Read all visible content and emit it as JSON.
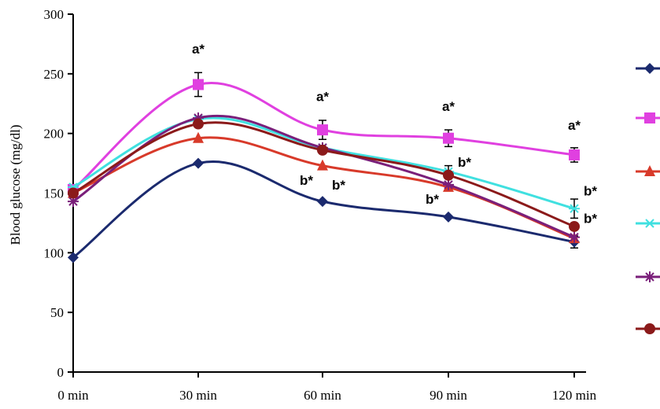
{
  "chart_data": {
    "type": "line",
    "title": "",
    "xlabel": "",
    "ylabel": "Blood glucose (mg/dl)",
    "categories": [
      "0 min",
      "30 min",
      "60 min",
      "90 min",
      "120 min"
    ],
    "ylim": [
      0,
      300
    ],
    "yticks": [
      0,
      50,
      100,
      150,
      200,
      250,
      300
    ],
    "grid": false,
    "legend_position": "right",
    "series": [
      {
        "values": [
          96,
          175,
          143,
          130,
          109
        ],
        "color": "#1b2a6e",
        "marker": "diamond"
      },
      {
        "values": [
          153,
          241,
          203,
          196,
          182
        ],
        "color": "#e040e0",
        "marker": "square"
      },
      {
        "values": [
          150,
          196,
          173,
          155,
          112
        ],
        "color": "#d83a2a",
        "marker": "triangle"
      },
      {
        "values": [
          155,
          212,
          188,
          168,
          137
        ],
        "color": "#40e0e0",
        "marker": "asterisk"
      },
      {
        "values": [
          143,
          213,
          188,
          157,
          113
        ],
        "color": "#7a1f7a",
        "marker": "star"
      },
      {
        "values": [
          150,
          208,
          186,
          165,
          122
        ],
        "color": "#8b1a1a",
        "marker": "circle"
      }
    ],
    "error_bars": [
      {
        "category": "30 min",
        "value": 241,
        "err": 10
      },
      {
        "category": "60 min",
        "value": 203,
        "err": 8
      },
      {
        "category": "90 min",
        "value": 196,
        "err": 7
      },
      {
        "category": "90 min",
        "value": 165,
        "err": 8
      },
      {
        "category": "120 min",
        "value": 182,
        "err": 6
      },
      {
        "category": "120 min",
        "value": 137,
        "err": 8
      },
      {
        "category": "120 min",
        "value": 109,
        "err": 5
      }
    ],
    "annotations": [
      {
        "text": "a*",
        "category": "30 min",
        "y": 267
      },
      {
        "text": "a*",
        "category": "60 min",
        "y": 227
      },
      {
        "text": "a*",
        "category": "90 min",
        "y": 219
      },
      {
        "text": "a*",
        "category": "120 min",
        "y": 203
      },
      {
        "text": "b*",
        "category": "60 min",
        "y": 157,
        "side": "left"
      },
      {
        "text": "b*",
        "category": "60 min",
        "y": 153
      },
      {
        "text": "b*",
        "category": "90 min",
        "y": 141,
        "side": "left"
      },
      {
        "text": "b*",
        "category": "90 min",
        "y": 172
      },
      {
        "text": "b*",
        "category": "120 min",
        "y": 148
      },
      {
        "text": "b*",
        "category": "120 min",
        "y": 125
      }
    ]
  }
}
